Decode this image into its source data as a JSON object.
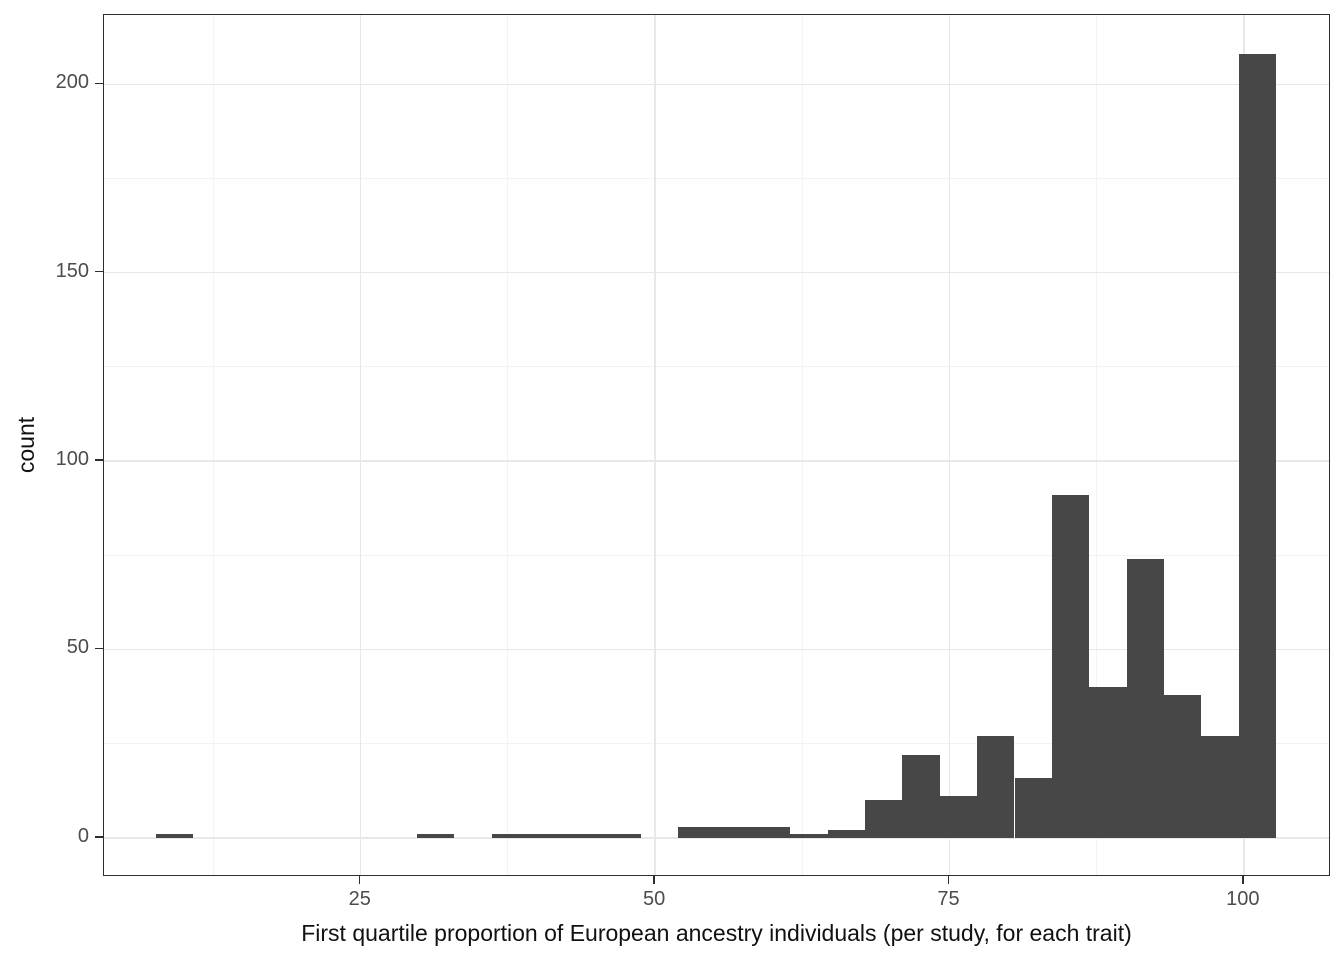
{
  "figure": {
    "background": "#ffffff"
  },
  "chart_data": {
    "type": "bar",
    "subtype": "histogram",
    "title": "",
    "xlabel": "First quartile proportion of European ancestry individuals (per study, for each trait)",
    "ylabel": "count",
    "legend": "none",
    "grid": "on",
    "bar_color": "#474747",
    "panel_border_color": "#2e2e2e",
    "grid_major_color": "#e8e8e8",
    "grid_minor_color": "#f3f3f3",
    "axis_text_color": "#4d4d4d",
    "axis_title_color": "#111111",
    "x_ticks": [
      25,
      50,
      75,
      100
    ],
    "y_ticks": [
      0,
      50,
      100,
      150,
      200
    ],
    "x_minor_ticks": [
      12.5,
      37.5,
      62.5,
      87.5
    ],
    "y_minor_ticks": [
      25,
      75,
      125,
      175
    ],
    "x_range": [
      3.2,
      107.4
    ],
    "y_range": [
      -10.4,
      218.4
    ],
    "bins": {
      "start": 7.59,
      "width": 3.171,
      "counts": [
        1,
        0,
        0,
        0,
        0,
        0,
        0,
        1,
        0,
        1,
        1,
        1,
        1,
        0,
        3,
        3,
        3,
        1,
        2,
        10,
        22,
        11,
        27,
        16,
        91,
        40,
        74,
        38,
        27,
        208
      ]
    },
    "total_observations": 582
  }
}
